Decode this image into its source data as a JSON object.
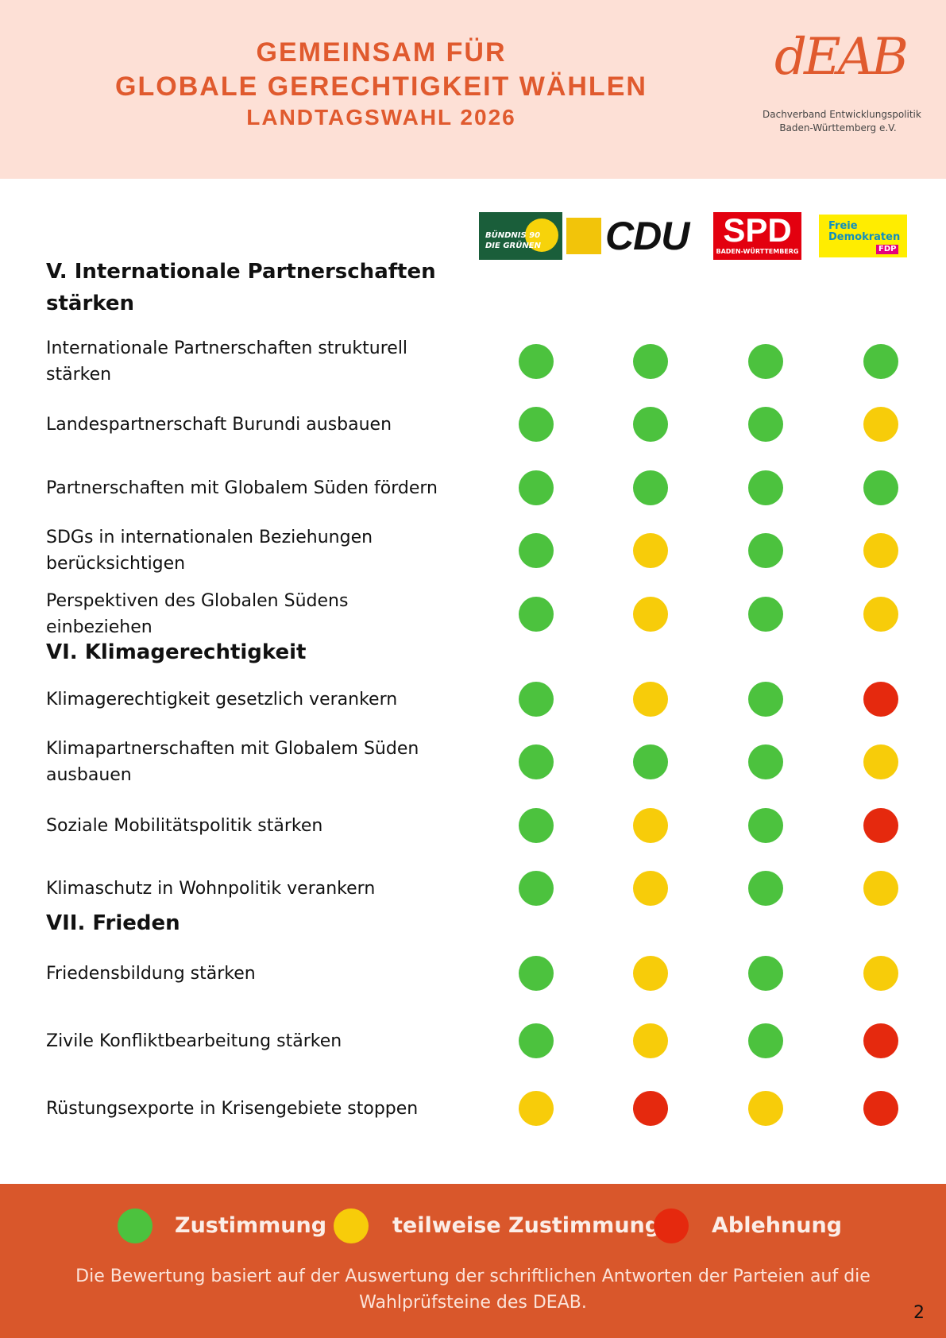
{
  "header": {
    "title_lines": [
      "GEMEINSAM FÜR",
      "GLOBALE GERECHTIGKEIT WÄHLEN",
      "LANDTAGSWAHL 2026"
    ],
    "logo": {
      "mark": "dEAB",
      "lines": [
        "Dachverband Entwicklungspolitik",
        "Baden-Württemberg e.V."
      ]
    }
  },
  "parties": [
    {
      "lines": [
        "BÜNDNIS 90",
        "DIE GRÜNEN"
      ]
    },
    {
      "lines": [
        "CDU"
      ]
    },
    {
      "lines": [
        "SPD",
        "BADEN-WÜRTTEMBERG"
      ]
    },
    {
      "lines": [
        "Freie",
        "Demokraten",
        "FDP"
      ]
    }
  ],
  "sections": [
    {
      "title_lines": [
        "V. Internationale Partnerschaften",
        "stärken"
      ],
      "items": [
        {
          "lines": [
            "Internationale Partnerschaften strukturell",
            "stärken"
          ],
          "ratings": [
            0,
            0,
            0,
            0
          ]
        },
        {
          "lines": [
            "Landespartnerschaft Burundi ausbauen"
          ],
          "ratings": [
            0,
            0,
            0,
            1
          ]
        },
        {
          "lines": [
            "Partnerschaften mit Globalem Süden fördern"
          ],
          "ratings": [
            0,
            0,
            0,
            0
          ]
        },
        {
          "lines": [
            "SDGs in internationalen Beziehungen",
            "berücksichtigen"
          ],
          "ratings": [
            0,
            1,
            0,
            1
          ]
        },
        {
          "lines": [
            "Perspektiven des Globalen Südens",
            "einbeziehen"
          ],
          "ratings": [
            0,
            1,
            0,
            1
          ]
        }
      ]
    },
    {
      "title_lines": [
        "VI. Klimagerechtigkeit"
      ],
      "items": [
        {
          "lines": [
            "Klimagerechtigkeit gesetzlich verankern"
          ],
          "ratings": [
            0,
            1,
            0,
            2
          ]
        },
        {
          "lines": [
            "Klimapartnerschaften mit Globalem Süden",
            "ausbauen"
          ],
          "ratings": [
            0,
            0,
            0,
            1
          ]
        },
        {
          "lines": [
            "Soziale Mobilitätspolitik stärken"
          ],
          "ratings": [
            0,
            1,
            0,
            2
          ]
        },
        {
          "lines": [
            "Klimaschutz in Wohnpolitik verankern"
          ],
          "ratings": [
            0,
            1,
            0,
            1
          ]
        }
      ]
    },
    {
      "title_lines": [
        "VII. Frieden"
      ],
      "items": [
        {
          "lines": [
            "Friedensbildung stärken"
          ],
          "ratings": [
            0,
            1,
            0,
            1
          ]
        },
        {
          "lines": [
            "Zivile Konfliktbearbeitung stärken"
          ],
          "ratings": [
            0,
            1,
            0,
            2
          ]
        },
        {
          "lines": [
            "Rüstungsexporte in Krisengebiete stoppen"
          ],
          "ratings": [
            1,
            2,
            1,
            2
          ]
        }
      ]
    }
  ],
  "legend": [
    {
      "label": "Zustimmung",
      "color": "#4cc23e"
    },
    {
      "label": "teilweise Zustimmung",
      "color": "#f7cc0a"
    },
    {
      "label": "Ablehnung",
      "color": "#e5290e"
    }
  ],
  "footer": {
    "note_lines": [
      "Die Bewertung basiert auf der Auswertung der schriftlichen Antworten der Parteien auf die",
      "Wahlprüfsteine des DEAB."
    ],
    "page": "2"
  }
}
